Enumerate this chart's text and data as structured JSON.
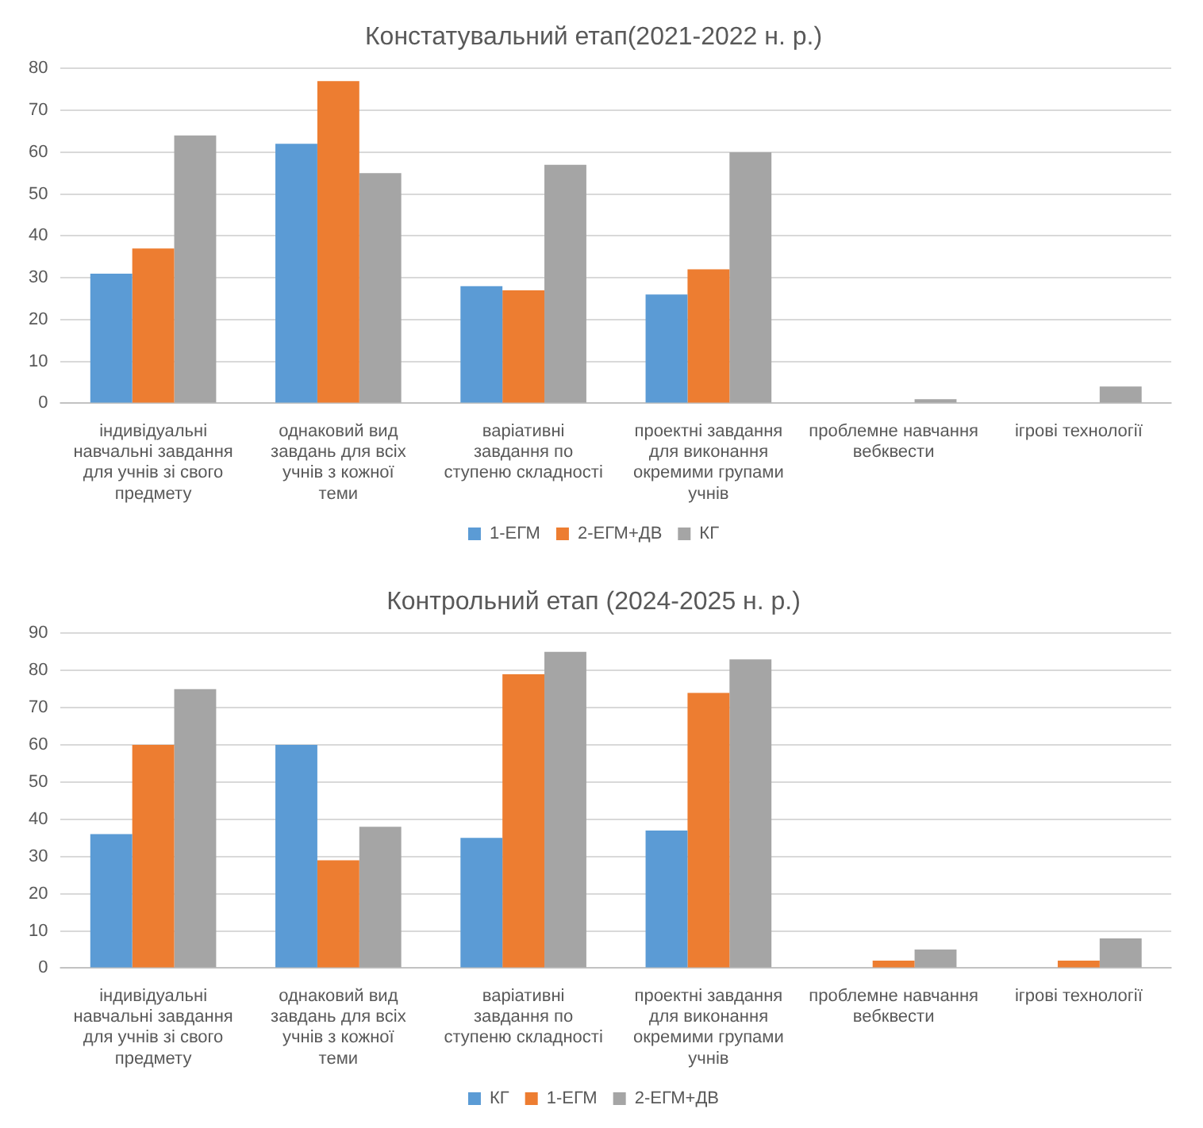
{
  "chart_data": [
    {
      "type": "bar",
      "title": "Констатувальний етап(2021-2022 н. р.)",
      "categories": [
        "індивідуальні навчальні завдання для учнів зі свого предмету",
        "однаковий вид завдань для всіх учнів з кожної теми",
        "варіативні завдання по ступеню складності",
        "проектні завдання для виконання окремими групами учнів",
        "проблемне навчання вебквести",
        "ігрові технології"
      ],
      "series": [
        {
          "name": "1-ЕГМ",
          "color": "#5b9bd5",
          "values": [
            31,
            62,
            28,
            26,
            0,
            0
          ]
        },
        {
          "name": "2-ЕГМ+ДВ",
          "color": "#ed7d31",
          "values": [
            37,
            77,
            27,
            32,
            0,
            0
          ]
        },
        {
          "name": "КГ",
          "color": "#a5a5a5",
          "values": [
            64,
            55,
            57,
            60,
            1,
            4
          ]
        }
      ],
      "ylim": [
        0,
        80
      ],
      "yticks": [
        0,
        10,
        20,
        30,
        40,
        50,
        60,
        70,
        80
      ],
      "grid": "y",
      "legend": "bottom"
    },
    {
      "type": "bar",
      "title": "Контрольний етап (2024-2025 н. р.)",
      "categories": [
        "індивідуальні навчальні завдання для учнів зі свого предмету",
        "однаковий вид завдань для всіх учнів з кожної теми",
        "варіативні завдання по ступеню складності",
        "проектні завдання для виконання окремими групами учнів",
        "проблемне навчання вебквести",
        "ігрові технології"
      ],
      "series": [
        {
          "name": "КГ",
          "color": "#5b9bd5",
          "values": [
            36,
            60,
            35,
            37,
            0,
            0
          ]
        },
        {
          "name": "1-ЕГМ",
          "color": "#ed7d31",
          "values": [
            60,
            29,
            79,
            74,
            2,
            2
          ]
        },
        {
          "name": "2-ЕГМ+ДВ",
          "color": "#a5a5a5",
          "values": [
            75,
            38,
            85,
            83,
            5,
            8
          ]
        }
      ],
      "ylim": [
        0,
        90
      ],
      "yticks": [
        0,
        10,
        20,
        30,
        40,
        50,
        60,
        70,
        80,
        90
      ],
      "grid": "y",
      "legend": "bottom"
    }
  ]
}
